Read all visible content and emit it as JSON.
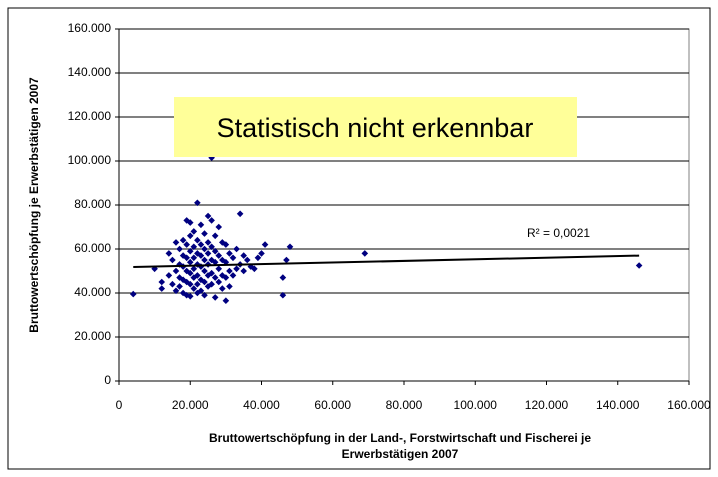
{
  "chart_data": {
    "type": "scatter",
    "annotation": "Statistisch nicht erkennbar",
    "r2_label": "R² = 0,0021",
    "xlabel": [
      "Bruttowertschöpfung in der Land-, Forstwirtschaft und Fischerei je",
      "Erwerbstätigen 2007"
    ],
    "ylabel": "Bruttowertschöpfung  je Erwerbstätigen 2007",
    "xlim": [
      0,
      160000
    ],
    "ylim": [
      0,
      160000
    ],
    "xticks": [
      0,
      {
        "value": 20000,
        "label": "20.000"
      },
      {
        "value": 40000,
        "label": "40.000"
      },
      {
        "value": 60000,
        "label": "60.000"
      },
      {
        "value": 80000,
        "label": "80.000"
      },
      {
        "value": 100000,
        "label": "100.000"
      },
      {
        "value": 120000,
        "label": "120.000"
      },
      {
        "value": 140000,
        "label": "140.000"
      },
      {
        "value": 160000,
        "label": "160.000"
      }
    ],
    "yticks": [
      0,
      {
        "value": 20000,
        "label": "20.000"
      },
      {
        "value": 40000,
        "label": "40.000"
      },
      {
        "value": 60000,
        "label": "60.000"
      },
      {
        "value": 80000,
        "label": "80.000"
      },
      {
        "value": 100000,
        "label": "100.000"
      },
      {
        "value": 120000,
        "label": "120.000"
      },
      {
        "value": 140000,
        "label": "140.000"
      },
      {
        "value": 160000,
        "label": "160.000"
      }
    ],
    "grid": true,
    "series": [
      {
        "color": "#000080",
        "x": [
          4000,
          10000,
          12000,
          12000,
          14000,
          14000,
          15000,
          15000,
          16000,
          16000,
          16000,
          17000,
          17000,
          17000,
          17000,
          18000,
          18000,
          18000,
          18000,
          18000,
          19000,
          19000,
          19000,
          19000,
          19000,
          19000,
          20000,
          20000,
          20000,
          20000,
          20000,
          20000,
          20000,
          21000,
          21000,
          21000,
          21000,
          21000,
          21000,
          22000,
          22000,
          22000,
          22000,
          22000,
          22000,
          22000,
          23000,
          23000,
          23000,
          23000,
          23000,
          23000,
          24000,
          24000,
          24000,
          24000,
          24000,
          24000,
          25000,
          25000,
          25000,
          25000,
          25000,
          25000,
          26000,
          26000,
          26000,
          26000,
          26000,
          27000,
          27000,
          27000,
          27000,
          27000,
          28000,
          28000,
          28000,
          28000,
          29000,
          29000,
          29000,
          29000,
          30000,
          30000,
          30000,
          30000,
          31000,
          31000,
          31000,
          32000,
          32000,
          33000,
          33000,
          34000,
          34000,
          35000,
          35000,
          36000,
          37000,
          38000,
          39000,
          40000,
          41000,
          46000,
          46000,
          47000,
          48000,
          69000,
          146000,
          26000
        ],
        "values": [
          39500,
          51000,
          45000,
          42000,
          58000,
          48000,
          55000,
          44000,
          63000,
          50000,
          41000,
          60000,
          53000,
          47000,
          43000,
          64000,
          57000,
          52000,
          46000,
          40000,
          73000,
          62000,
          56000,
          50000,
          45000,
          39000,
          72000,
          66000,
          59000,
          54000,
          49000,
          44000,
          38500,
          68000,
          61000,
          56000,
          51000,
          47000,
          42000,
          81000,
          64000,
          58000,
          53000,
          48000,
          44000,
          40000,
          71000,
          62000,
          57000,
          52000,
          46000,
          41000,
          67000,
          60000,
          55000,
          50000,
          45000,
          39000,
          75000,
          63000,
          58000,
          53000,
          48000,
          43000,
          73000,
          61000,
          55000,
          49000,
          44000,
          66000,
          59000,
          54000,
          47000,
          38000,
          70000,
          57000,
          51000,
          45000,
          63000,
          55000,
          48000,
          42000,
          62000,
          54000,
          47000,
          36500,
          58000,
          50000,
          43000,
          56000,
          48000,
          60000,
          51000,
          76000,
          53000,
          57000,
          50000,
          55000,
          52000,
          51000,
          56000,
          58000,
          62000,
          39000,
          47000,
          55000,
          61000,
          58000,
          52500,
          101500
        ]
      }
    ],
    "trendline": {
      "color": "#000000",
      "x": [
        4000,
        146000
      ],
      "values": [
        51800,
        57000
      ]
    }
  }
}
